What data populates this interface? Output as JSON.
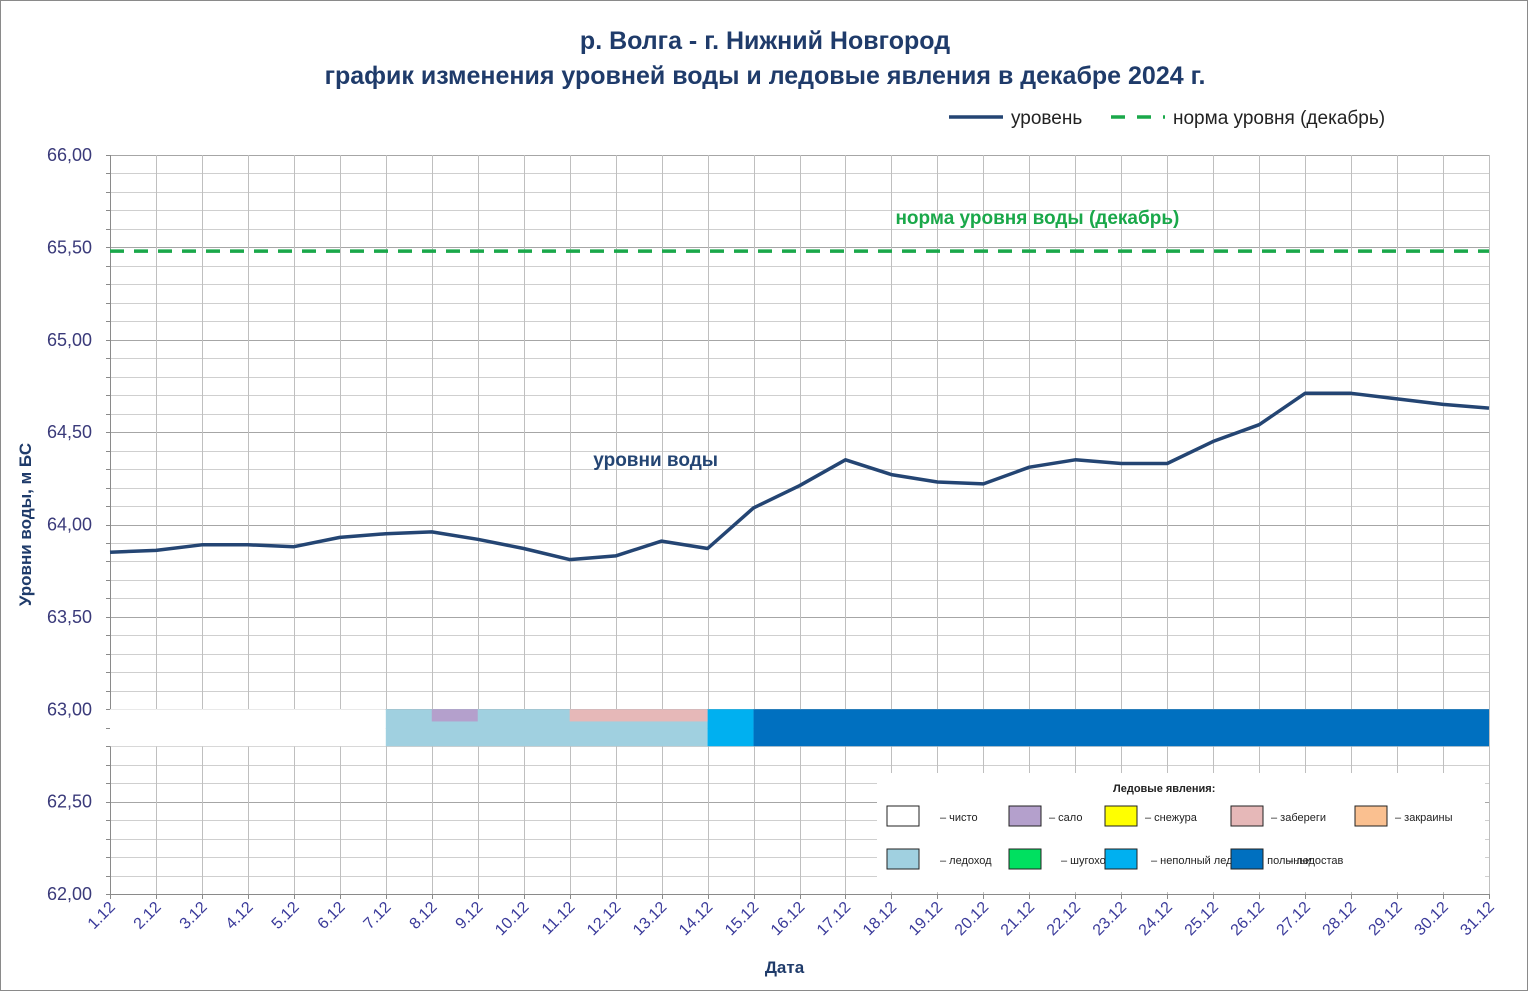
{
  "chart_data": {
    "type": "line",
    "title": "р. Волга - г. Нижний Новгород",
    "subtitle": "график изменения уровней воды и ледовые явления в декабре 2024  г.",
    "xlabel": "Дата",
    "ylabel": "Уровни воды, м БС",
    "ylim": [
      62.0,
      66.0
    ],
    "ytick_step": 0.5,
    "minor_tick_step": 0.1,
    "yticks": [
      "62,00",
      "62,50",
      "63,00",
      "63,50",
      "64,00",
      "64,50",
      "65,00",
      "65,50",
      "66,00"
    ],
    "categories": [
      "1.12",
      "2.12",
      "3.12",
      "4.12",
      "5.12",
      "6.12",
      "7.12",
      "8.12",
      "9.12",
      "10.12",
      "11.12",
      "12.12",
      "13.12",
      "14.12",
      "15.12",
      "16.12",
      "17.12",
      "18.12",
      "19.12",
      "20.12",
      "21.12",
      "22.12",
      "23.12",
      "24.12",
      "25.12",
      "26.12",
      "27.12",
      "28.12",
      "29.12",
      "30.12",
      "31.12"
    ],
    "legend_position": "top-right",
    "series": [
      {
        "name": "уровень",
        "color": "#244573",
        "style": "solid",
        "values": [
          63.85,
          63.86,
          63.89,
          63.89,
          63.88,
          63.93,
          63.95,
          63.96,
          63.92,
          63.87,
          63.81,
          63.83,
          63.91,
          63.87,
          64.09,
          64.21,
          64.35,
          64.27,
          64.23,
          64.22,
          64.31,
          64.35,
          64.33,
          64.33,
          64.45,
          64.54,
          64.71,
          64.71,
          64.68,
          64.65,
          64.63
        ]
      },
      {
        "name": "норма уровня (декабрь)",
        "color": "#1aa84a",
        "style": "dashed",
        "values": [
          65.48,
          65.48,
          65.48,
          65.48,
          65.48,
          65.48,
          65.48,
          65.48,
          65.48,
          65.48,
          65.48,
          65.48,
          65.48,
          65.48,
          65.48,
          65.48,
          65.48,
          65.48,
          65.48,
          65.48,
          65.48,
          65.48,
          65.48,
          65.48,
          65.48,
          65.48,
          65.48,
          65.48,
          65.48,
          65.48,
          65.48
        ]
      }
    ],
    "annotations": [
      {
        "text": "норма уровня воды  (декабрь)",
        "x": "19.12",
        "y": 65.66,
        "color": "#1aa84a"
      },
      {
        "text": "уровни воды",
        "x": "12.12",
        "y": 64.35,
        "color": "#244573"
      }
    ],
    "ice_band": {
      "y_top": 63.0,
      "y_bottom": 62.8,
      "segments": [
        {
          "type": "чисто",
          "from": "1.12",
          "to": "7.12",
          "color": "#ffffff"
        },
        {
          "type": "ледоход",
          "from": "7.12",
          "to": "14.12",
          "color": "#a0d0e0"
        },
        {
          "type": "неполный ледостав, полыньи",
          "from": "14.12",
          "to": "15.12",
          "color": "#00b0f0"
        },
        {
          "type": "ледостав",
          "from": "15.12",
          "to": "31.12",
          "color": "#0070c0"
        }
      ],
      "overlays": [
        {
          "type": "сало",
          "from": "8.12",
          "to": "9.12",
          "color": "#b4a0cc"
        },
        {
          "type": "забереги",
          "from": "11.12",
          "to": "14.12",
          "color": "#e6b8b8"
        }
      ]
    },
    "ice_legend": {
      "title": "Ледовые явления:",
      "items": [
        {
          "label": "– чисто",
          "color": "#ffffff"
        },
        {
          "label": "– сало",
          "color": "#b4a0cc"
        },
        {
          "label": "– снежура",
          "color": "#ffff00"
        },
        {
          "label": "– забереги",
          "color": "#e6b8b8"
        },
        {
          "label": "– закраины",
          "color": "#fac090"
        },
        {
          "label": "– ледоход",
          "color": "#a0d0e0"
        },
        {
          "label": "– шугоход",
          "color": "#00e060"
        },
        {
          "label": "– неполный ледостав, полыньи",
          "color": "#00b0f0"
        },
        {
          "label": "– ледостав",
          "color": "#0070c0"
        }
      ]
    },
    "grid": true
  }
}
